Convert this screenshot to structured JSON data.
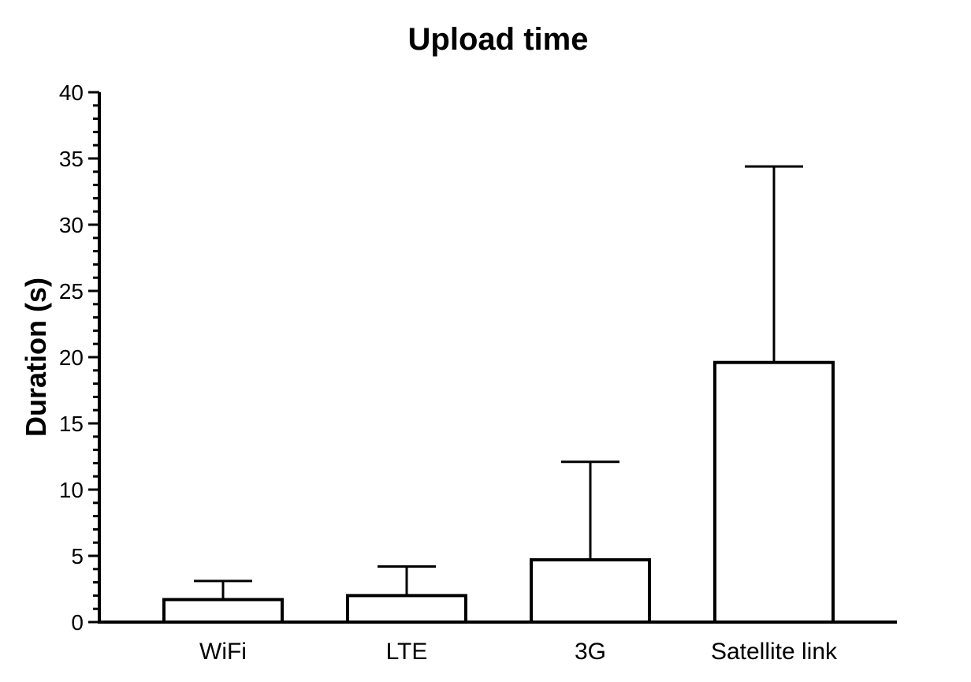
{
  "chart_data": {
    "type": "bar",
    "title": "Upload time",
    "xlabel": "",
    "ylabel": "Duration (s)",
    "ylim": [
      0,
      40
    ],
    "y_major_ticks": [
      0,
      5,
      10,
      15,
      20,
      25,
      30,
      35,
      40
    ],
    "y_tick_labels": [
      "0",
      "5",
      "10",
      "15",
      "20",
      "25",
      "30",
      "35",
      "40"
    ],
    "y_minor_step": 1,
    "categories": [
      "WiFi",
      "LTE",
      "3G",
      "Satellite link"
    ],
    "values": [
      1.7,
      2.0,
      4.7,
      19.6
    ],
    "error_upper": [
      3.1,
      4.2,
      12.1,
      34.4
    ],
    "grid": false,
    "bar_fill": "#ffffff",
    "stroke_color": "#000000"
  }
}
